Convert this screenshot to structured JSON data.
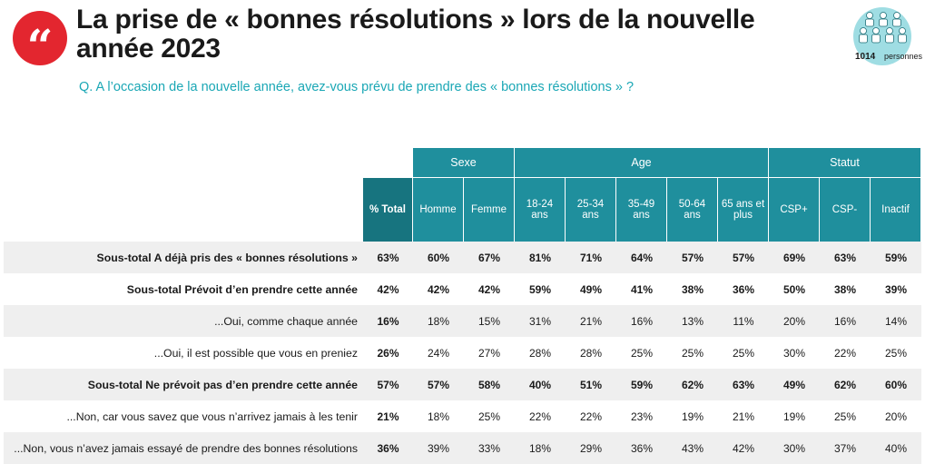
{
  "logo_glyph": "“",
  "title": "La prise de « bonnes résolutions » lors de la nouvelle année 2023",
  "question": "Q. A l’occasion de la nouvelle année, avez-vous prévu de prendre des « bonnes résolutions » ?",
  "badge": {
    "count": "1014",
    "label": "personnes",
    "icon": "people-group-icon"
  },
  "table": {
    "groups": [
      {
        "label": "Sexe",
        "span": 2
      },
      {
        "label": "Age",
        "span": 5
      },
      {
        "label": "Statut",
        "span": 3
      }
    ],
    "total_header": "% Total",
    "columns": [
      "Homme",
      "Femme",
      "18-24 ans",
      "25-34 ans",
      "35-49 ans",
      "50-64 ans",
      "65 ans et plus",
      "CSP+",
      "CSP-",
      "Inactif"
    ],
    "rows": [
      {
        "label": "Sous-total A déjà pris des « bonnes résolutions »",
        "total": "63%",
        "values": [
          "60%",
          "67%",
          "81%",
          "71%",
          "64%",
          "57%",
          "57%",
          "69%",
          "63%",
          "59%"
        ],
        "bold": true,
        "shade": true
      },
      {
        "label": "Sous-total Prévoit d’en prendre cette année",
        "total": "42%",
        "values": [
          "42%",
          "42%",
          "59%",
          "49%",
          "41%",
          "38%",
          "36%",
          "50%",
          "38%",
          "39%"
        ],
        "bold": true,
        "shade": false
      },
      {
        "label": "...Oui, comme chaque année",
        "total": "16%",
        "values": [
          "18%",
          "15%",
          "31%",
          "21%",
          "16%",
          "13%",
          "11%",
          "20%",
          "16%",
          "14%"
        ],
        "bold": false,
        "shade": true
      },
      {
        "label": "...Oui, il est possible que vous en preniez",
        "total": "26%",
        "values": [
          "24%",
          "27%",
          "28%",
          "28%",
          "25%",
          "25%",
          "25%",
          "30%",
          "22%",
          "25%"
        ],
        "bold": false,
        "shade": false
      },
      {
        "label": "Sous-total Ne prévoit pas d’en prendre cette année",
        "total": "57%",
        "values": [
          "57%",
          "58%",
          "40%",
          "51%",
          "59%",
          "62%",
          "63%",
          "49%",
          "62%",
          "60%"
        ],
        "bold": true,
        "shade": true
      },
      {
        "label": "...Non, car vous savez que vous n’arrivez jamais à les tenir",
        "total": "21%",
        "values": [
          "18%",
          "25%",
          "22%",
          "22%",
          "23%",
          "19%",
          "21%",
          "19%",
          "25%",
          "20%"
        ],
        "bold": false,
        "shade": false
      },
      {
        "label": "...Non, vous n’avez jamais essayé de prendre des bonnes résolutions",
        "total": "36%",
        "values": [
          "39%",
          "33%",
          "18%",
          "29%",
          "36%",
          "43%",
          "42%",
          "30%",
          "37%",
          "40%"
        ],
        "bold": false,
        "shade": true
      }
    ]
  }
}
